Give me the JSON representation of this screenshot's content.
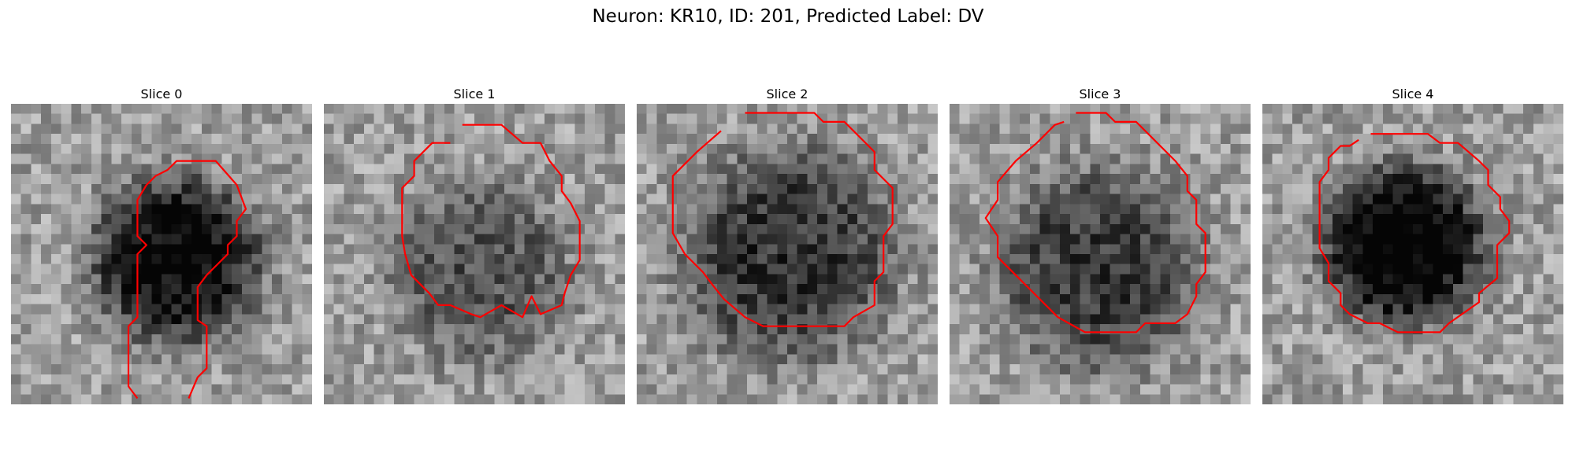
{
  "title": "Neuron: KR10, ID: 201, Predicted Label: DV",
  "panels": [
    {
      "label": "Slice 0",
      "center": [
        0.55,
        0.52
      ],
      "dark": 0.62,
      "radius": 0.28,
      "seed": 11,
      "contour": [
        [
          0.42,
          0.98
        ],
        [
          0.39,
          0.94
        ],
        [
          0.39,
          0.74
        ],
        [
          0.42,
          0.71
        ],
        [
          0.42,
          0.5
        ],
        [
          0.45,
          0.47
        ],
        [
          0.42,
          0.44
        ],
        [
          0.42,
          0.32
        ],
        [
          0.45,
          0.27
        ],
        [
          0.48,
          0.24
        ],
        [
          0.52,
          0.22
        ],
        [
          0.55,
          0.19
        ],
        [
          0.68,
          0.19
        ],
        [
          0.75,
          0.27
        ],
        [
          0.78,
          0.35
        ],
        [
          0.75,
          0.39
        ],
        [
          0.75,
          0.44
        ],
        [
          0.72,
          0.47
        ],
        [
          0.72,
          0.5
        ],
        [
          0.65,
          0.57
        ],
        [
          0.62,
          0.61
        ],
        [
          0.62,
          0.72
        ],
        [
          0.65,
          0.74
        ],
        [
          0.65,
          0.88
        ],
        [
          0.62,
          0.91
        ],
        [
          0.59,
          0.98
        ]
      ]
    },
    {
      "label": "Slice 1",
      "center": [
        0.52,
        0.56
      ],
      "dark": 0.3,
      "radius": 0.3,
      "seed": 23,
      "contour": [
        [
          0.46,
          0.07
        ],
        [
          0.59,
          0.07
        ],
        [
          0.66,
          0.13
        ],
        [
          0.72,
          0.13
        ],
        [
          0.75,
          0.19
        ],
        [
          0.79,
          0.24
        ],
        [
          0.79,
          0.29
        ],
        [
          0.82,
          0.33
        ],
        [
          0.85,
          0.39
        ],
        [
          0.85,
          0.52
        ],
        [
          0.82,
          0.57
        ],
        [
          0.8,
          0.63
        ],
        [
          0.79,
          0.67
        ],
        [
          0.72,
          0.7
        ],
        [
          0.69,
          0.64
        ],
        [
          0.66,
          0.71
        ],
        [
          0.59,
          0.67
        ],
        [
          0.52,
          0.71
        ],
        [
          0.49,
          0.7
        ],
        [
          0.42,
          0.67
        ],
        [
          0.38,
          0.67
        ],
        [
          0.35,
          0.63
        ],
        [
          0.29,
          0.57
        ],
        [
          0.27,
          0.5
        ],
        [
          0.26,
          0.44
        ],
        [
          0.26,
          0.28
        ],
        [
          0.3,
          0.24
        ],
        [
          0.3,
          0.19
        ],
        [
          0.36,
          0.13
        ],
        [
          0.42,
          0.13
        ]
      ]
    },
    {
      "label": "Slice 2",
      "center": [
        0.5,
        0.5
      ],
      "dark": 0.42,
      "radius": 0.36,
      "seed": 37,
      "contour": [
        [
          0.36,
          0.03
        ],
        [
          0.59,
          0.03
        ],
        [
          0.62,
          0.06
        ],
        [
          0.69,
          0.06
        ],
        [
          0.79,
          0.16
        ],
        [
          0.79,
          0.22
        ],
        [
          0.85,
          0.28
        ],
        [
          0.85,
          0.4
        ],
        [
          0.82,
          0.44
        ],
        [
          0.82,
          0.56
        ],
        [
          0.79,
          0.59
        ],
        [
          0.79,
          0.67
        ],
        [
          0.72,
          0.71
        ],
        [
          0.69,
          0.74
        ],
        [
          0.42,
          0.74
        ],
        [
          0.36,
          0.71
        ],
        [
          0.29,
          0.65
        ],
        [
          0.25,
          0.6
        ],
        [
          0.22,
          0.56
        ],
        [
          0.16,
          0.5
        ],
        [
          0.12,
          0.43
        ],
        [
          0.12,
          0.24
        ],
        [
          0.2,
          0.16
        ],
        [
          0.28,
          0.09
        ]
      ]
    },
    {
      "label": "Slice 3",
      "center": [
        0.5,
        0.55
      ],
      "dark": 0.4,
      "radius": 0.34,
      "seed": 51,
      "contour": [
        [
          0.42,
          0.03
        ],
        [
          0.45,
          0.03
        ],
        [
          0.52,
          0.03
        ],
        [
          0.55,
          0.06
        ],
        [
          0.62,
          0.06
        ],
        [
          0.69,
          0.13
        ],
        [
          0.75,
          0.19
        ],
        [
          0.79,
          0.24
        ],
        [
          0.79,
          0.29
        ],
        [
          0.82,
          0.32
        ],
        [
          0.82,
          0.4
        ],
        [
          0.85,
          0.43
        ],
        [
          0.85,
          0.56
        ],
        [
          0.82,
          0.6
        ],
        [
          0.82,
          0.64
        ],
        [
          0.79,
          0.7
        ],
        [
          0.75,
          0.73
        ],
        [
          0.65,
          0.73
        ],
        [
          0.62,
          0.76
        ],
        [
          0.45,
          0.76
        ],
        [
          0.36,
          0.71
        ],
        [
          0.22,
          0.57
        ],
        [
          0.16,
          0.51
        ],
        [
          0.16,
          0.44
        ],
        [
          0.12,
          0.38
        ],
        [
          0.16,
          0.32
        ],
        [
          0.16,
          0.26
        ],
        [
          0.22,
          0.19
        ],
        [
          0.29,
          0.13
        ],
        [
          0.35,
          0.07
        ],
        [
          0.38,
          0.06
        ]
      ]
    },
    {
      "label": "Slice 4",
      "center": [
        0.47,
        0.47
      ],
      "dark": 0.68,
      "radius": 0.27,
      "seed": 67,
      "contour": [
        [
          0.36,
          0.1
        ],
        [
          0.55,
          0.1
        ],
        [
          0.59,
          0.13
        ],
        [
          0.65,
          0.13
        ],
        [
          0.72,
          0.19
        ],
        [
          0.75,
          0.22
        ],
        [
          0.75,
          0.27
        ],
        [
          0.79,
          0.31
        ],
        [
          0.79,
          0.35
        ],
        [
          0.82,
          0.39
        ],
        [
          0.82,
          0.43
        ],
        [
          0.78,
          0.47
        ],
        [
          0.78,
          0.58
        ],
        [
          0.72,
          0.63
        ],
        [
          0.72,
          0.66
        ],
        [
          0.62,
          0.73
        ],
        [
          0.59,
          0.76
        ],
        [
          0.45,
          0.76
        ],
        [
          0.39,
          0.73
        ],
        [
          0.35,
          0.73
        ],
        [
          0.29,
          0.7
        ],
        [
          0.26,
          0.67
        ],
        [
          0.26,
          0.63
        ],
        [
          0.22,
          0.59
        ],
        [
          0.22,
          0.53
        ],
        [
          0.19,
          0.48
        ],
        [
          0.19,
          0.26
        ],
        [
          0.22,
          0.22
        ],
        [
          0.22,
          0.18
        ],
        [
          0.26,
          0.14
        ],
        [
          0.29,
          0.14
        ],
        [
          0.32,
          0.12
        ]
      ]
    }
  ],
  "contour_color": "#ff0000",
  "colormap": "gray"
}
